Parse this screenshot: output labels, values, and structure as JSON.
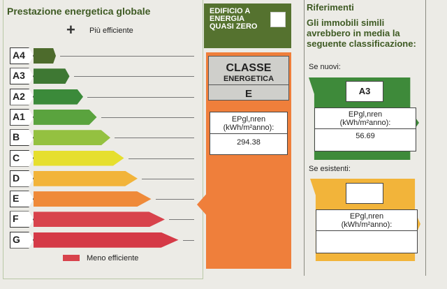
{
  "left": {
    "title": "Prestazione energetica globale",
    "more_efficient": "Più efficiente",
    "less_efficient": "Meno efficiente",
    "classes": [
      {
        "label": "A4",
        "color": "#4d6b2c"
      },
      {
        "label": "A3",
        "color": "#3e7833"
      },
      {
        "label": "A2",
        "color": "#3b8a3a"
      },
      {
        "label": "A1",
        "color": "#5aa33e"
      },
      {
        "label": "B",
        "color": "#94c140"
      },
      {
        "label": "C",
        "color": "#e6df2e"
      },
      {
        "label": "D",
        "color": "#f2b43a"
      },
      {
        "label": "E",
        "color": "#ef8a39"
      },
      {
        "label": "F",
        "color": "#d8434c"
      },
      {
        "label": "G",
        "color": "#d53a47"
      }
    ]
  },
  "nzeb": {
    "label": "EDIFICIO A ENERGIA QUASI ZERO",
    "checked": false
  },
  "current": {
    "header1": "CLASSE",
    "header2": "ENERGETICA",
    "class": "E",
    "ep_label": "EPgl,nren",
    "ep_unit": "(kWh/m²anno):",
    "ep_value": "294.38",
    "color": "#ef7f3b"
  },
  "references": {
    "title": "Riferimenti",
    "intro": "Gli immobili simili avrebbero in media la seguente classificazione:",
    "new_label": "Se nuovi:",
    "new_class": "A3",
    "new_ep_label": "EPgl,nren",
    "new_ep_unit": "(kWh/m²anno):",
    "new_ep_value": "56.69",
    "existing_label": "Se esistenti:",
    "existing_class": "",
    "existing_ep_label": "EPgl,nren",
    "existing_ep_unit": "(kWh/m²anno):",
    "existing_ep_value": ""
  }
}
